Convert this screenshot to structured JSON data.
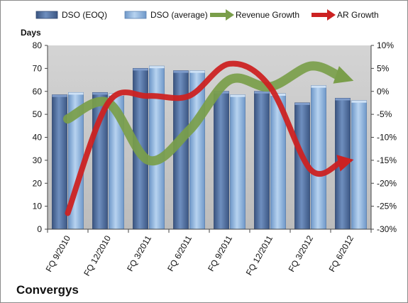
{
  "chart_data": {
    "type": "bar",
    "company": "Convergys",
    "y_left_label": "Days",
    "categories": [
      "FQ 9/2010",
      "FQ 12/2010",
      "FQ 3/2011",
      "FQ 6/2011",
      "FQ 9/2011",
      "FQ 12/2011",
      "FQ 3/2012",
      "FQ 6/2012"
    ],
    "ylim_left": [
      0,
      80
    ],
    "ylim_right": [
      -30,
      10
    ],
    "left_ticks": [
      "0",
      "10",
      "20",
      "30",
      "40",
      "50",
      "60",
      "70",
      "80"
    ],
    "right_ticks": [
      "-30%",
      "-25%",
      "-20%",
      "-15%",
      "-10%",
      "-5%",
      "0%",
      "5%",
      "10%"
    ],
    "series": [
      {
        "name": "DSO (EOQ)",
        "type": "bar",
        "axis": "left",
        "values": [
          58.5,
          59.5,
          70,
          69,
          60,
          60,
          55,
          57
        ]
      },
      {
        "name": "DSO (average)",
        "type": "bar",
        "axis": "left",
        "values": [
          59.5,
          59,
          71,
          69,
          58.5,
          59,
          62.5,
          56
        ]
      },
      {
        "name": "Revenue Growth",
        "type": "line",
        "axis": "right",
        "unit": "%",
        "values": [
          -6,
          -2.5,
          -15,
          -8.5,
          2.5,
          1,
          5.5,
          2.5
        ]
      },
      {
        "name": "AR Growth",
        "type": "line",
        "axis": "right",
        "unit": "%",
        "values": [
          -26.5,
          -2.5,
          -1,
          -1,
          6,
          1,
          -17,
          -15
        ]
      }
    ],
    "legend_position": "top",
    "grid": false,
    "colors": {
      "dso_eoq": "#4a6a9a",
      "dso_average": "#8fb3dc",
      "revenue_growth": "#7a9e4a",
      "ar_growth": "#cc2222",
      "plot_background": "#c8c8c8"
    }
  }
}
